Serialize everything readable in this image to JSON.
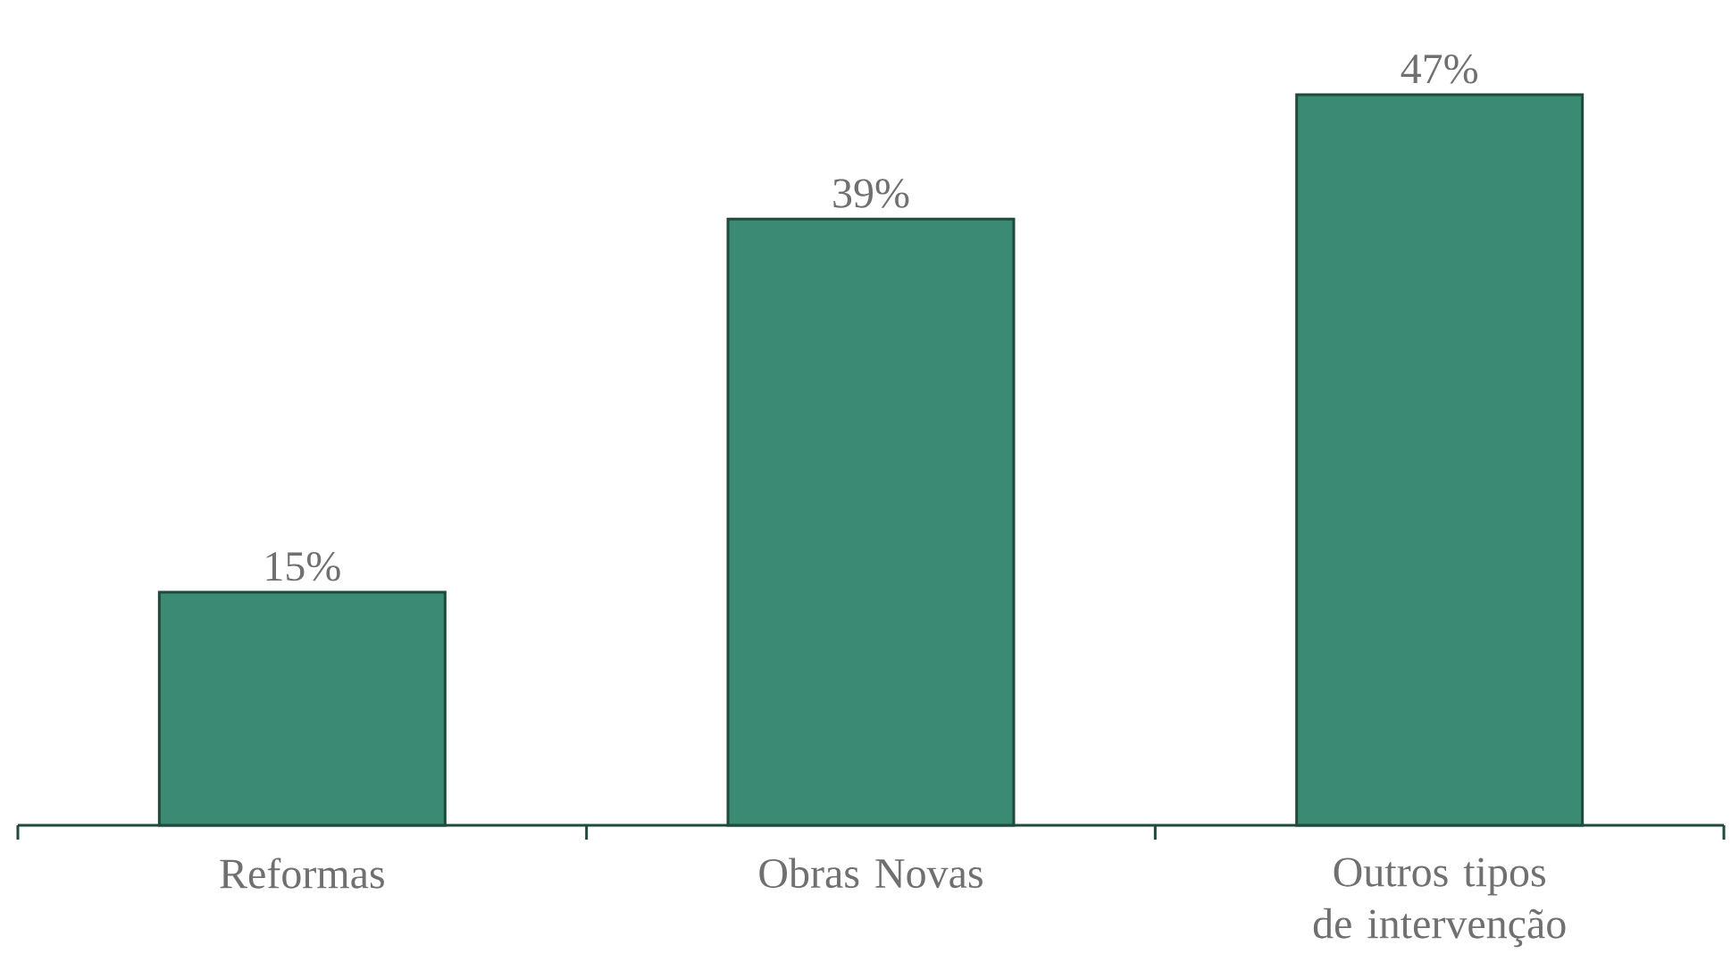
{
  "chart_data": {
    "type": "bar",
    "categories": [
      "Reformas",
      "Obras Novas",
      "Outros tipos de intervenção"
    ],
    "values": [
      15,
      39,
      47
    ],
    "value_labels": [
      "15%",
      "39%",
      "47%"
    ],
    "color": "#3a8a74"
  }
}
